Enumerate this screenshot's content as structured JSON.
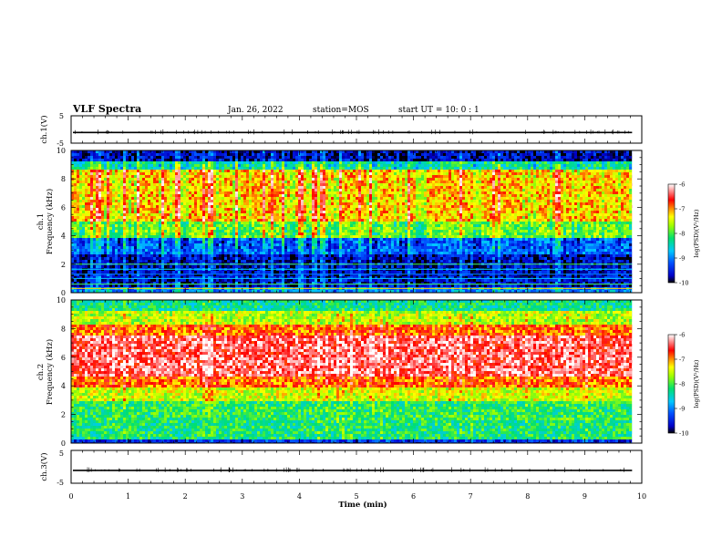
{
  "header": {
    "title": "VLF Spectra",
    "date": "Jan. 26, 2022",
    "station": "station=MOS",
    "start": "start  UT =   10: 0  : 1"
  },
  "chart_data": [
    {
      "type": "line",
      "panel": "ch1-voltage",
      "ylabel": "ch.1(V)",
      "ylim": [
        -5,
        5
      ],
      "ytick_labels": [
        "5",
        "-5"
      ],
      "xlim": [
        0,
        10
      ],
      "trace_level": -1.1
    },
    {
      "type": "heatmap",
      "panel": "ch1-spectrogram",
      "ylabel_top": "ch.1",
      "ylabel": "Frequency (kHz)",
      "ylim": [
        0,
        10
      ],
      "yticks": [
        "0",
        "2",
        "4",
        "6",
        "8",
        "10"
      ],
      "xlim": [
        0,
        10
      ],
      "data_end_min": 9.83,
      "colorbar": {
        "label": "log(PSD)(V²/Hz)",
        "range": [
          -10,
          -6
        ],
        "ticks": [
          "-6",
          "-7",
          "-8",
          "-9",
          "-10"
        ]
      }
    },
    {
      "type": "heatmap",
      "panel": "ch2-spectrogram",
      "ylabel_top": "ch.2",
      "ylabel": "Frequency (kHz)",
      "ylim": [
        0,
        10
      ],
      "yticks": [
        "0",
        "2",
        "4",
        "6",
        "8",
        "10"
      ],
      "xlim": [
        0,
        10
      ],
      "data_end_min": 9.83,
      "colorbar": {
        "label": "log(PSD)(V²/Hz)",
        "range": [
          -10,
          -6
        ],
        "ticks": [
          "-6",
          "-7",
          "-8",
          "-9",
          "-10"
        ]
      }
    },
    {
      "type": "line",
      "panel": "ch3-voltage",
      "ylabel": "ch.3(V)",
      "ylim": [
        -5,
        5
      ],
      "ytick_labels": [
        "5",
        "-5"
      ],
      "xlim": [
        0,
        10
      ],
      "trace_level": -1.1,
      "xlabel": "Time (min)",
      "xticks": [
        "0",
        "1",
        "2",
        "3",
        "4",
        "5",
        "6",
        "7",
        "8",
        "9",
        "10"
      ]
    }
  ]
}
